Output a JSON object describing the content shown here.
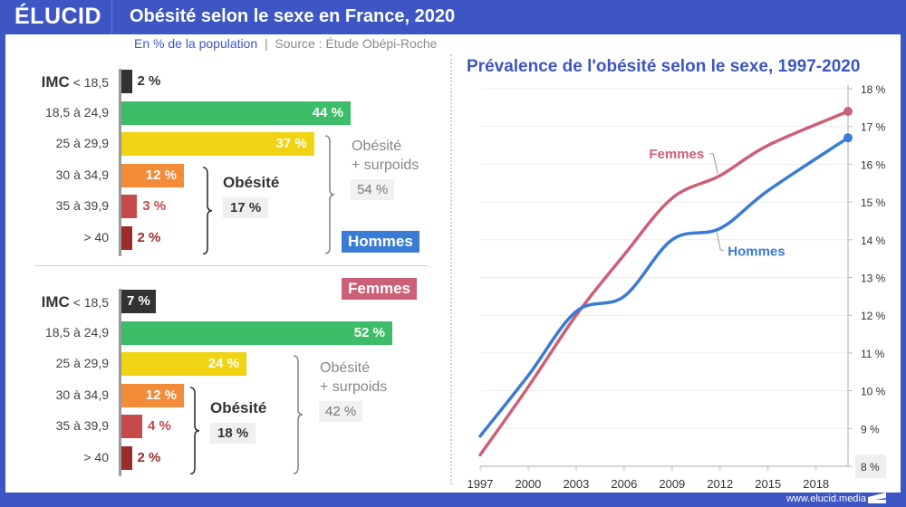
{
  "header": {
    "logo": "ÉLUCID",
    "title": "Obésité selon le sexe en France, 2020",
    "subtitle_unit": "En % de la population",
    "subtitle_sep": "|",
    "subtitle_source": "Source : Étude Obépi-Roche"
  },
  "footer": {
    "url": "www.elucid.media"
  },
  "colors": {
    "brand": "#3d56c4",
    "hommes": "#3a7bd5",
    "femmes": "#cc6077",
    "bmi_under": "#333333",
    "bmi_normal": "#3dbd68",
    "bmi_over": "#f0d312",
    "bmi_ob1": "#f28c38",
    "bmi_ob2": "#c64a4a",
    "bmi_ob3": "#9b2a2a"
  },
  "chart_data": [
    {
      "type": "bar",
      "title": "Hommes",
      "orientation": "horizontal",
      "categories": [
        "IMC < 18,5",
        "18,5 à 24,9",
        "25 à 29,9",
        "30 à 34,9",
        "35 à 39,9",
        "> 40"
      ],
      "category_prefix": "IMC",
      "category_labels": [
        "< 18,5",
        "18,5 à 24,9",
        "25 à 29,9",
        "30 à 34,9",
        "35 à 39,9",
        "> 40"
      ],
      "values": [
        2,
        44,
        37,
        12,
        3,
        2
      ],
      "value_labels": [
        "2 %",
        "44 %",
        "37 %",
        "12 %",
        "3 %",
        "2 %"
      ],
      "annotations": [
        {
          "label": "Obésité",
          "value": "17 %",
          "covers": [
            "30 à 34,9",
            "35 à 39,9",
            "> 40"
          ]
        },
        {
          "label_line1": "Obésité",
          "label_line2": "+ surpoids",
          "value": "54 %",
          "covers": [
            "25 à 29,9",
            "30 à 34,9",
            "35 à 39,9",
            "> 40"
          ]
        }
      ],
      "tag": "Hommes"
    },
    {
      "type": "bar",
      "title": "Femmes",
      "orientation": "horizontal",
      "categories": [
        "IMC < 18,5",
        "18,5 à 24,9",
        "25 à 29,9",
        "30 à 34,9",
        "35 à 39,9",
        "> 40"
      ],
      "category_prefix": "IMC",
      "category_labels": [
        "< 18,5",
        "18,5 à 24,9",
        "25 à 29,9",
        "30 à 34,9",
        "35 à 39,9",
        "> 40"
      ],
      "values": [
        7,
        52,
        24,
        12,
        4,
        2
      ],
      "value_labels": [
        "7 %",
        "52 %",
        "24 %",
        "12 %",
        "4 %",
        "2 %"
      ],
      "annotations": [
        {
          "label": "Obésité",
          "value": "18 %",
          "covers": [
            "30 à 34,9",
            "35 à 39,9",
            "> 40"
          ]
        },
        {
          "label_line1": "Obésité",
          "label_line2": "+ surpoids",
          "value": "42 %",
          "covers": [
            "25 à 29,9",
            "30 à 34,9",
            "35 à 39,9",
            "> 40"
          ]
        }
      ],
      "tag": "Femmes"
    },
    {
      "type": "line",
      "title": "Prévalence de l'obésité selon le sexe, 1997-2020",
      "x": [
        1997,
        2000,
        2003,
        2006,
        2009,
        2012,
        2015,
        2020
      ],
      "xticks": [
        "1997",
        "2000",
        "2003",
        "2006",
        "2009",
        "2012",
        "2015",
        "2018"
      ],
      "xlim": [
        1997,
        2020
      ],
      "ylim": [
        8,
        18
      ],
      "yticks": [
        "8 %",
        "9 %",
        "10 %",
        "11 %",
        "12 %",
        "13 %",
        "14 %",
        "15 %",
        "16 %",
        "17 %",
        "18 %"
      ],
      "yaxis_position": "right",
      "grid": true,
      "series": [
        {
          "name": "Femmes",
          "values": [
            8.3,
            10.1,
            12.0,
            13.6,
            15.1,
            15.7,
            16.5,
            17.4
          ]
        },
        {
          "name": "Hommes",
          "values": [
            8.8,
            10.4,
            12.1,
            12.5,
            14.0,
            14.3,
            15.3,
            16.7
          ]
        }
      ],
      "legend": "inline labels"
    }
  ]
}
